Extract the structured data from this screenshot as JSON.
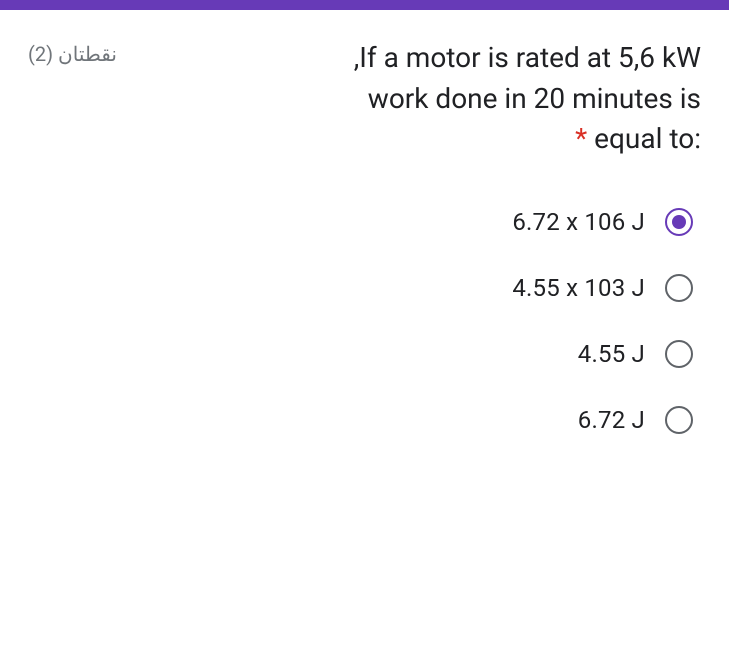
{
  "theme": {
    "accent": "#673ab7",
    "required_color": "#d93025",
    "text_color": "#202124",
    "muted_color": "#70757a",
    "radio_border": "#5f6368",
    "background": "#ffffff"
  },
  "question": {
    "points_label": "نقطتان (2)",
    "text_line1": "If a motor is rated at 5,6 kW,",
    "text_line2": "work done in 20 minutes is",
    "text_line3_prefix": ":equal to",
    "required_mark": "*"
  },
  "options": [
    {
      "label": "6.72 x 106 J",
      "selected": true
    },
    {
      "label": "4.55 x 103 J",
      "selected": false
    },
    {
      "label": "4.55 J",
      "selected": false
    },
    {
      "label": "6.72 J",
      "selected": false
    }
  ]
}
